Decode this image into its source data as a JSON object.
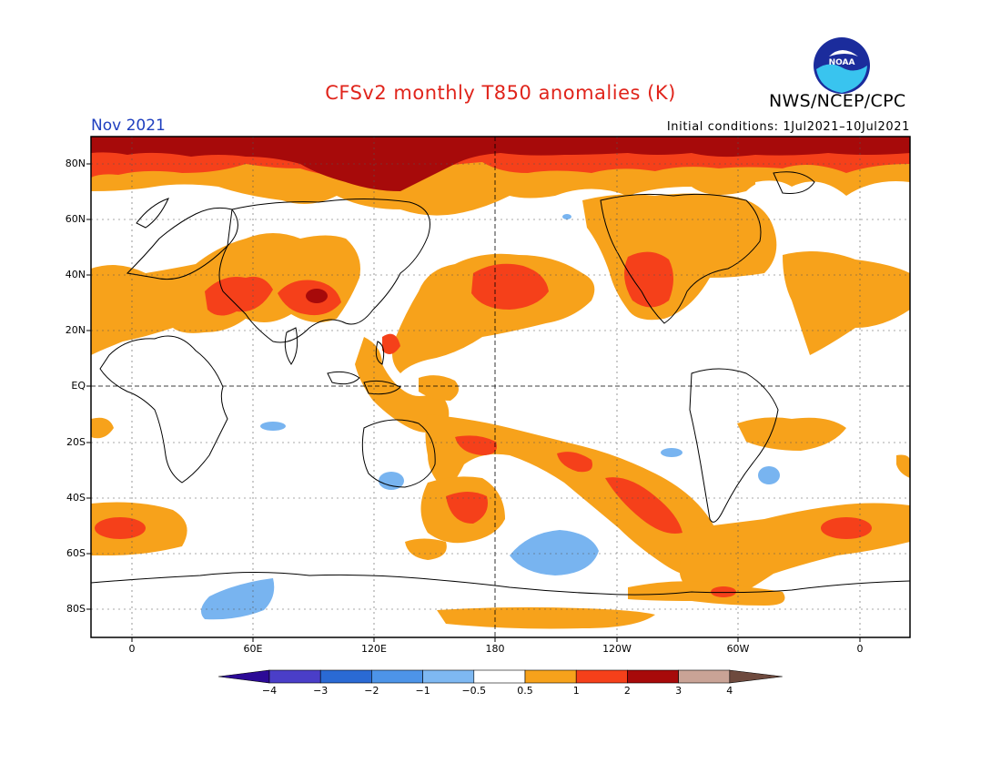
{
  "header": {
    "title": "CFSv2 monthly T850 anomalies (K)",
    "org": "NWS/NCEP/CPC",
    "logo_text": "NOAA",
    "month": "Nov 2021",
    "initial_conditions": "Initial conditions: 1Jul2021–10Jul2021"
  },
  "map": {
    "lat_labels": [
      "80N",
      "60N",
      "40N",
      "20N",
      "EQ",
      "20S",
      "40S",
      "60S",
      "80S"
    ],
    "lon_labels": [
      "0",
      "60E",
      "120E",
      "180",
      "120W",
      "60W",
      "0"
    ],
    "colors": {
      "ocean_land": "#ffffff",
      "anom_05_1": "#f7a21b",
      "anom_1_2": "#f5401a",
      "anom_2_3": "#a70a0a",
      "anom_neg": "#78b4f0",
      "coast": "#000000"
    }
  },
  "colorbar": {
    "labels": [
      "−4",
      "−3",
      "−2",
      "−1",
      "−0.5",
      "0.5",
      "1",
      "2",
      "3",
      "4"
    ],
    "colors": [
      "#2c0a96",
      "#4a3ec8",
      "#2a6ad4",
      "#4d94e8",
      "#7eb8f2",
      "#ffffff",
      "#f7a21b",
      "#f5401a",
      "#a70a0a",
      "#c9a396",
      "#6e4a3e"
    ]
  }
}
